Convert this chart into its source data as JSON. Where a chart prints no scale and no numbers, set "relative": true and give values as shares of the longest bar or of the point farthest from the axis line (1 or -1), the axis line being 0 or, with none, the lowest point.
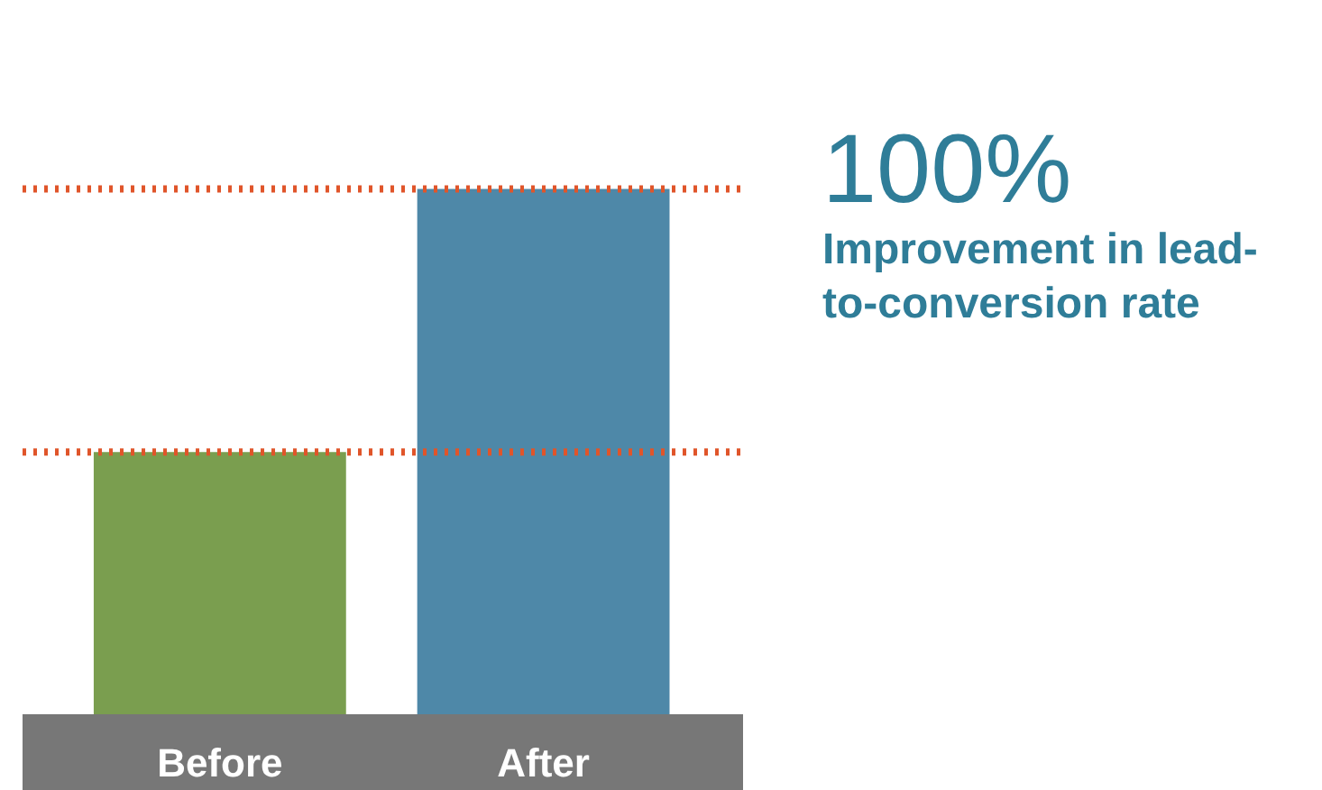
{
  "chart_data": {
    "type": "bar",
    "relative": true,
    "categories": [
      "Before",
      "After"
    ],
    "colors": [
      "#7a9e4f",
      "#4e88a8"
    ],
    "values": [
      0.5,
      1
    ],
    "ref_lines": [
      {
        "axis": "y",
        "value": 0.5,
        "color": "#e0552a",
        "line_style": "dotted"
      },
      {
        "axis": "y",
        "value": 1,
        "color": "#e0552a",
        "line_style": "dotted"
      }
    ],
    "annotations": [
      "100%",
      "Improvement in lead-to-conversion rate"
    ]
  }
}
